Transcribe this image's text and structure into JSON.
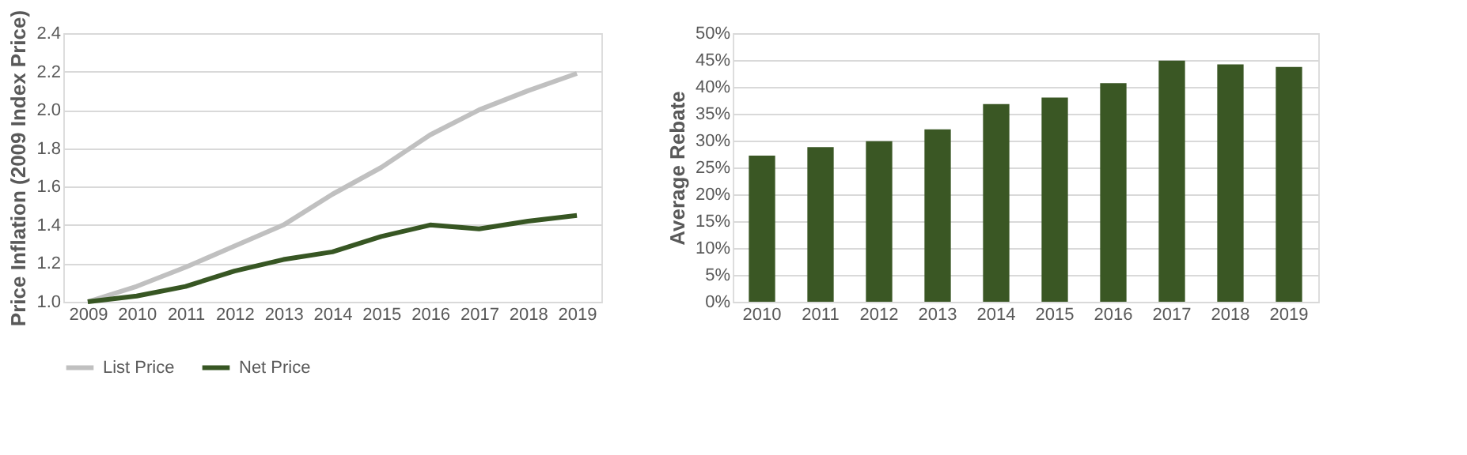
{
  "chart_data": [
    {
      "type": "line",
      "ylabel": "Price Inflation (2009 Index Price)",
      "categories": [
        "2009",
        "2010",
        "2011",
        "2012",
        "2013",
        "2014",
        "2015",
        "2016",
        "2017",
        "2018",
        "2019"
      ],
      "series": [
        {
          "name": "List Price",
          "color": "#c0c0c0",
          "values": [
            1.0,
            1.08,
            1.18,
            1.29,
            1.4,
            1.56,
            1.7,
            1.87,
            2.0,
            2.1,
            2.19
          ]
        },
        {
          "name": "Net Price",
          "color": "#375623",
          "values": [
            1.0,
            1.03,
            1.08,
            1.16,
            1.22,
            1.26,
            1.34,
            1.4,
            1.38,
            1.42,
            1.45
          ]
        }
      ],
      "ylim": [
        1.0,
        2.4
      ],
      "yticks": [
        {
          "value": 1.0,
          "label": "1.0"
        },
        {
          "value": 1.2,
          "label": "1.2"
        },
        {
          "value": 1.4,
          "label": "1.4"
        },
        {
          "value": 1.6,
          "label": "1.6"
        },
        {
          "value": 1.8,
          "label": "1.8"
        },
        {
          "value": 2.0,
          "label": "2.0"
        },
        {
          "value": 2.2,
          "label": "2.2"
        },
        {
          "value": 2.4,
          "label": "2.4"
        }
      ],
      "grid": "y",
      "legend": "bottom",
      "marker": "none",
      "line_style": "solid"
    },
    {
      "type": "bar",
      "ylabel": "Average Rebate",
      "categories": [
        "2010",
        "2011",
        "2012",
        "2013",
        "2014",
        "2015",
        "2016",
        "2017",
        "2018",
        "2019"
      ],
      "series": [
        {
          "color": "#3a5724",
          "values": [
            27.2,
            28.8,
            29.9,
            32.1,
            36.8,
            38.0,
            40.7,
            44.9,
            44.2,
            43.7
          ]
        }
      ],
      "ylim": [
        0,
        50
      ],
      "yticks": [
        {
          "value": 0,
          "label": "0%"
        },
        {
          "value": 5,
          "label": "5%"
        },
        {
          "value": 10,
          "label": "10%"
        },
        {
          "value": 15,
          "label": "15%"
        },
        {
          "value": 20,
          "label": "20%"
        },
        {
          "value": 25,
          "label": "25%"
        },
        {
          "value": 30,
          "label": "30%"
        },
        {
          "value": 35,
          "label": "35%"
        },
        {
          "value": 40,
          "label": "40%"
        },
        {
          "value": 45,
          "label": "45%"
        },
        {
          "value": 50,
          "label": "50%"
        }
      ],
      "grid": "y"
    }
  ]
}
